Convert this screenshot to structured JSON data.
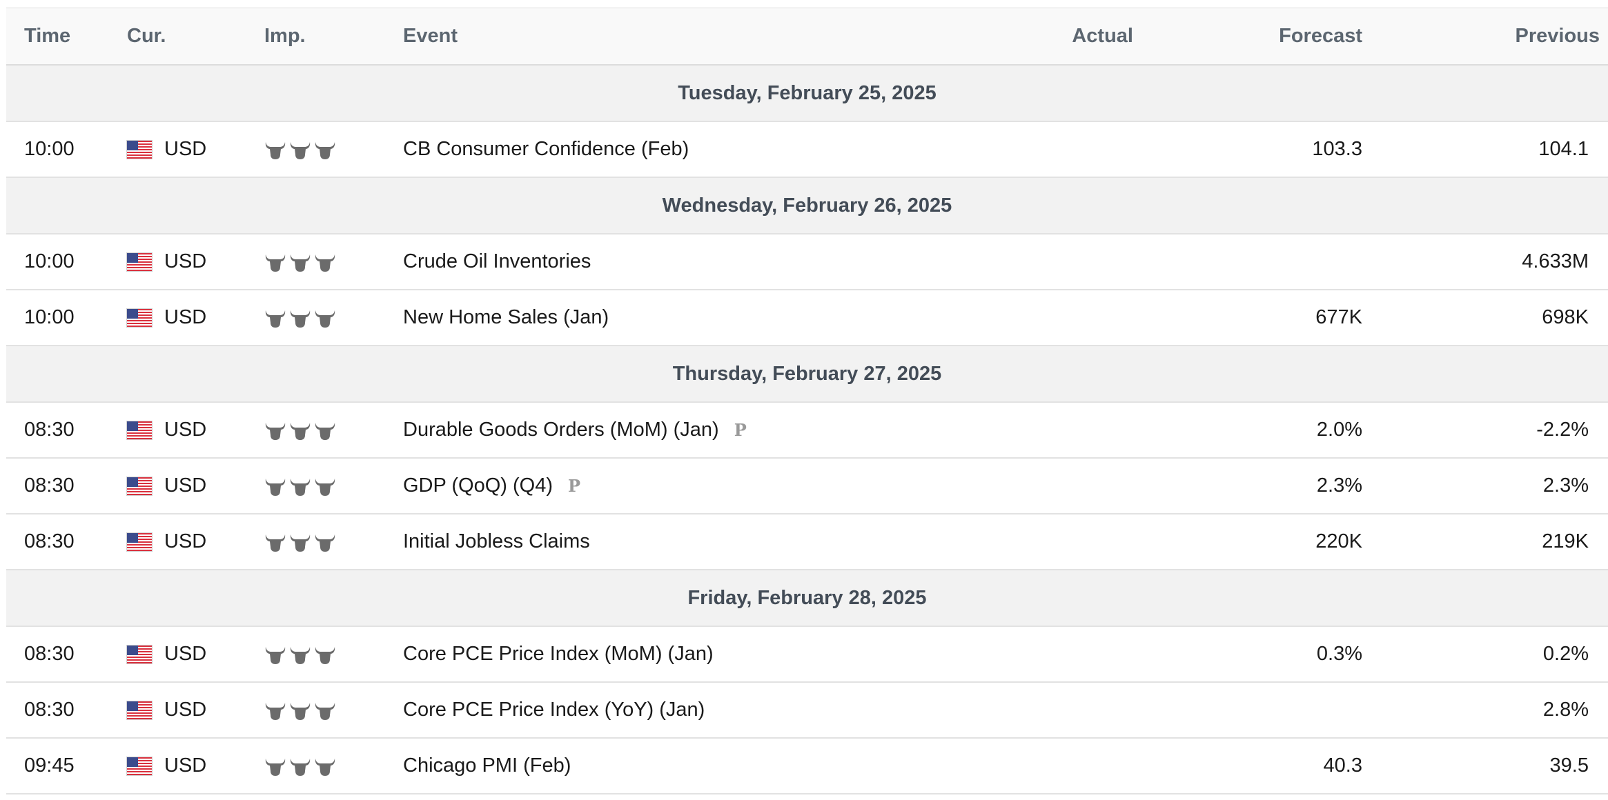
{
  "header": {
    "time": "Time",
    "currency": "Cur.",
    "importance": "Imp.",
    "event": "Event",
    "actual": "Actual",
    "forecast": "Forecast",
    "previous": "Previous"
  },
  "colors": {
    "header_bg": "#f9f9f9",
    "day_bg": "#f2f2f2",
    "bull_active": "#6b6b6b",
    "flag_red": "#d9313e",
    "flag_blue": "#3b4b8c"
  },
  "icons": {
    "flag": "us-flag-icon",
    "importance": "bull-icon",
    "preliminary": "preliminary-icon"
  },
  "days": [
    {
      "label": "Tuesday, February 25, 2025",
      "events": [
        {
          "time": "10:00",
          "currency": "USD",
          "importance": 3,
          "event": "CB Consumer Confidence (Feb)",
          "preliminary": "",
          "actual": "",
          "forecast": "103.3",
          "previous": "104.1"
        }
      ]
    },
    {
      "label": "Wednesday, February 26, 2025",
      "events": [
        {
          "time": "10:00",
          "currency": "USD",
          "importance": 3,
          "event": "Crude Oil Inventories",
          "preliminary": "",
          "actual": "",
          "forecast": "",
          "previous": "4.633M"
        },
        {
          "time": "10:00",
          "currency": "USD",
          "importance": 3,
          "event": "New Home Sales (Jan)",
          "preliminary": "",
          "actual": "",
          "forecast": "677K",
          "previous": "698K"
        }
      ]
    },
    {
      "label": "Thursday, February 27, 2025",
      "events": [
        {
          "time": "08:30",
          "currency": "USD",
          "importance": 3,
          "event": "Durable Goods Orders (MoM) (Jan)",
          "preliminary": "P",
          "actual": "",
          "forecast": "2.0%",
          "previous": "-2.2%"
        },
        {
          "time": "08:30",
          "currency": "USD",
          "importance": 3,
          "event": "GDP (QoQ) (Q4)",
          "preliminary": "P",
          "actual": "",
          "forecast": "2.3%",
          "previous": "2.3%"
        },
        {
          "time": "08:30",
          "currency": "USD",
          "importance": 3,
          "event": "Initial Jobless Claims",
          "preliminary": "",
          "actual": "",
          "forecast": "220K",
          "previous": "219K"
        }
      ]
    },
    {
      "label": "Friday, February 28, 2025",
      "events": [
        {
          "time": "08:30",
          "currency": "USD",
          "importance": 3,
          "event": "Core PCE Price Index (MoM) (Jan)",
          "preliminary": "",
          "actual": "",
          "forecast": "0.3%",
          "previous": "0.2%"
        },
        {
          "time": "08:30",
          "currency": "USD",
          "importance": 3,
          "event": "Core PCE Price Index (YoY) (Jan)",
          "preliminary": "",
          "actual": "",
          "forecast": "",
          "previous": "2.8%"
        },
        {
          "time": "09:45",
          "currency": "USD",
          "importance": 3,
          "event": "Chicago PMI (Feb)",
          "preliminary": "",
          "actual": "",
          "forecast": "40.3",
          "previous": "39.5"
        }
      ]
    }
  ]
}
